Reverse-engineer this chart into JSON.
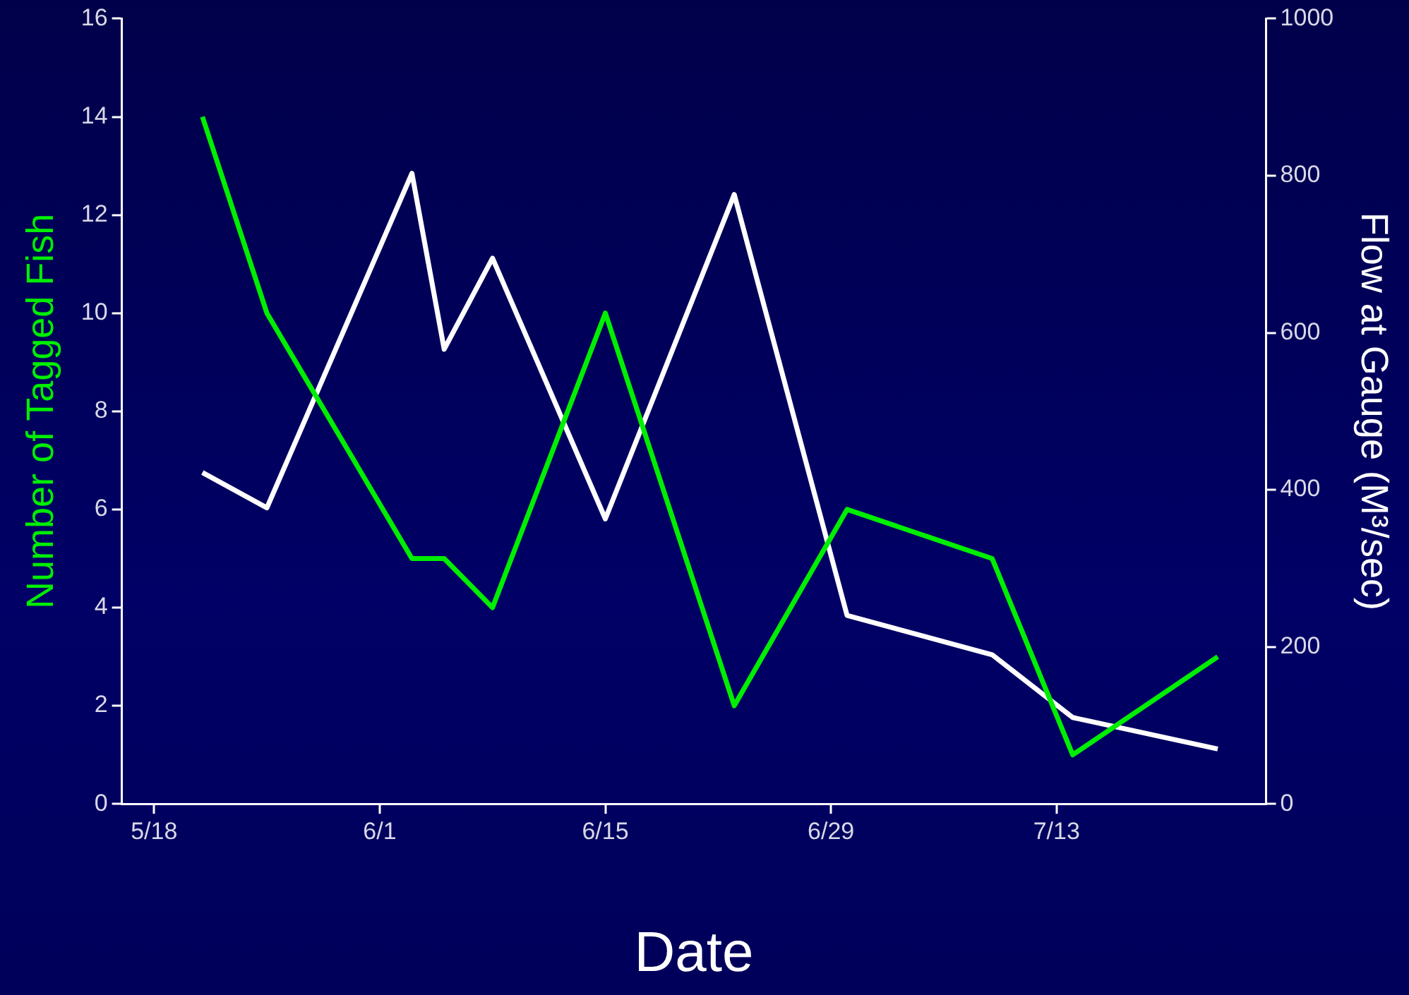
{
  "chart_data": {
    "type": "line",
    "xlabel": "Date",
    "ylabel": "Number of Tagged Fish",
    "y2label": "Flow at Gauge (M³/sec)",
    "x": [
      "--05-21",
      "--05-25",
      "--06-03",
      "--06-05",
      "--06-08",
      "--06-15",
      "--06-23",
      "--06-30",
      "--07-09",
      "--07-14",
      "--07-23"
    ],
    "series": [
      {
        "color": "#00ee00",
        "values": [
          14,
          10,
          5,
          5,
          4,
          10,
          2,
          6,
          5,
          1,
          3
        ]
      },
      {
        "color": "#ffffff",
        "axis": "y2",
        "values": [
          422,
          377,
          803,
          579,
          695,
          363,
          776,
          240,
          190,
          110,
          70
        ]
      }
    ],
    "xlim": [
      "--05-16",
      "--07-26"
    ],
    "xticks": [
      {
        "value": "--05-18",
        "label": "5/18"
      },
      {
        "value": "--06-01",
        "label": "6/1"
      },
      {
        "value": "--06-15",
        "label": "6/15"
      },
      {
        "value": "--06-29",
        "label": "6/29"
      },
      {
        "value": "--07-13",
        "label": "7/13"
      }
    ],
    "ylim": [
      0,
      16
    ],
    "yticks": [
      0,
      2,
      4,
      6,
      8,
      10,
      12,
      14,
      16
    ],
    "y2lim": [
      0,
      1000
    ],
    "y2ticks": [
      0,
      200,
      400,
      600,
      800,
      1000
    ],
    "grid": false,
    "legend": false,
    "marker": "none",
    "line_style": "solid"
  }
}
